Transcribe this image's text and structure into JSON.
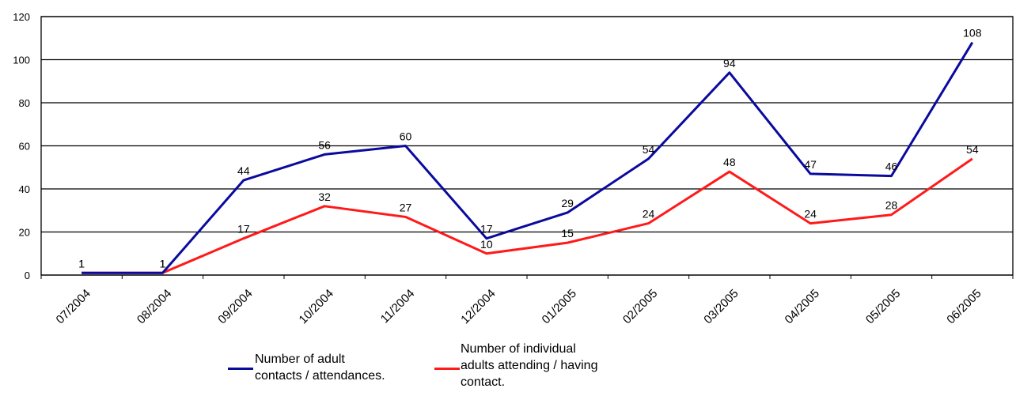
{
  "chart_data": {
    "type": "line",
    "categories": [
      "07/2004",
      "08/2004",
      "09/2004",
      "10/2004",
      "11/2004",
      "12/2004",
      "01/2005",
      "02/2005",
      "03/2005",
      "04/2005",
      "05/2005",
      "06/2005"
    ],
    "series": [
      {
        "name": "Number of adult contacts / attendances.",
        "name_lines": [
          "Number of adult",
          "contacts / attendances."
        ],
        "color": "#0a0a9e",
        "values": [
          1,
          1,
          44,
          56,
          60,
          17,
          29,
          54,
          94,
          47,
          46,
          108
        ],
        "labels": [
          "1",
          "1",
          "44",
          "56",
          "60",
          "17",
          "29",
          "54",
          "94",
          "47",
          "46",
          "108"
        ]
      },
      {
        "name": "Number of individual adults attending / having contact.",
        "name_lines": [
          "Number of individual",
          "adults attending / having",
          "contact."
        ],
        "color": "#ff1a1a",
        "values": [
          1,
          1,
          17,
          32,
          27,
          10,
          15,
          24,
          48,
          24,
          28,
          54
        ],
        "labels": [
          "1",
          "1",
          "17",
          "32",
          "27",
          "10",
          "15",
          "24",
          "48",
          "24",
          "28",
          "54"
        ]
      }
    ],
    "y_ticks": [
      "0",
      "20",
      "40",
      "60",
      "80",
      "100",
      "120"
    ],
    "ylim": [
      0,
      120
    ],
    "grid": true,
    "legend_position": "bottom"
  }
}
